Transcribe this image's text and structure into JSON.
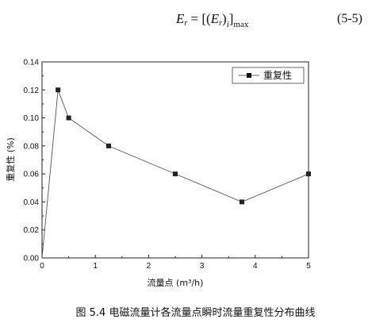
{
  "formula": {
    "lhs_symbol": "E",
    "lhs_sub": "r",
    "rhs_open": "= [(",
    "inner_symbol": "E",
    "inner_sub": "r",
    "inner_close": ")",
    "inner_index": "i",
    "rhs_close": "]",
    "max_sub": "max",
    "number": "(5-5)"
  },
  "chart_data": {
    "type": "line",
    "x": [
      0,
      0.3,
      0.5,
      1.25,
      2.5,
      3.75,
      5
    ],
    "series": [
      {
        "name": "重复性",
        "values": [
          0,
          0.12,
          0.1,
          0.08,
          0.06,
          0.04,
          0.06
        ],
        "color": "#222222",
        "marker": "square"
      }
    ],
    "xlabel": "流量点 (m³/h)",
    "ylabel": "重复性 (%)",
    "xlim": [
      0,
      5
    ],
    "ylim": [
      0,
      0.14
    ],
    "xticks": [
      "0",
      "1",
      "2",
      "3",
      "4",
      "5"
    ],
    "yticks": [
      "0.00",
      "0.02",
      "0.04",
      "0.06",
      "0.08",
      "0.10",
      "0.12",
      "0.14"
    ],
    "grid": false,
    "legend_position": "top-right"
  },
  "caption": "图 5.4 电磁流量计各流量点瞬时流量重复性分布曲线"
}
